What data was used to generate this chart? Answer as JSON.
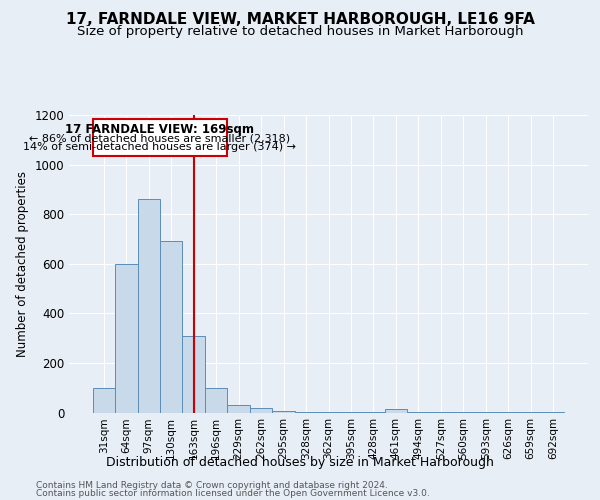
{
  "title": "17, FARNDALE VIEW, MARKET HARBOROUGH, LE16 9FA",
  "subtitle": "Size of property relative to detached houses in Market Harborough",
  "xlabel": "Distribution of detached houses by size in Market Harborough",
  "ylabel": "Number of detached properties",
  "footer1": "Contains HM Land Registry data © Crown copyright and database right 2024.",
  "footer2": "Contains public sector information licensed under the Open Government Licence v3.0.",
  "categories": [
    "31sqm",
    "64sqm",
    "97sqm",
    "130sqm",
    "163sqm",
    "196sqm",
    "229sqm",
    "262sqm",
    "295sqm",
    "328sqm",
    "362sqm",
    "395sqm",
    "428sqm",
    "461sqm",
    "494sqm",
    "527sqm",
    "560sqm",
    "593sqm",
    "626sqm",
    "659sqm",
    "692sqm"
  ],
  "values": [
    100,
    600,
    860,
    690,
    310,
    100,
    30,
    20,
    5,
    2,
    2,
    1,
    1,
    15,
    1,
    1,
    1,
    1,
    1,
    1,
    1
  ],
  "bar_color": "#c8d9ea",
  "bar_edge_color": "#5b8db8",
  "highlight_index": 4,
  "highlight_line_color": "#cc0000",
  "annotation_text1": "17 FARNDALE VIEW: 169sqm",
  "annotation_text2": "← 86% of detached houses are smaller (2,318)",
  "annotation_text3": "14% of semi-detached houses are larger (374) →",
  "annotation_box_color": "#ffffff",
  "annotation_border_color": "#cc0000",
  "ylim": [
    0,
    1200
  ],
  "yticks": [
    0,
    200,
    400,
    600,
    800,
    1000,
    1200
  ],
  "background_color": "#e8eef6",
  "plot_background": "#e8eef6",
  "grid_color": "#ffffff",
  "title_fontsize": 11,
  "subtitle_fontsize": 9.5
}
